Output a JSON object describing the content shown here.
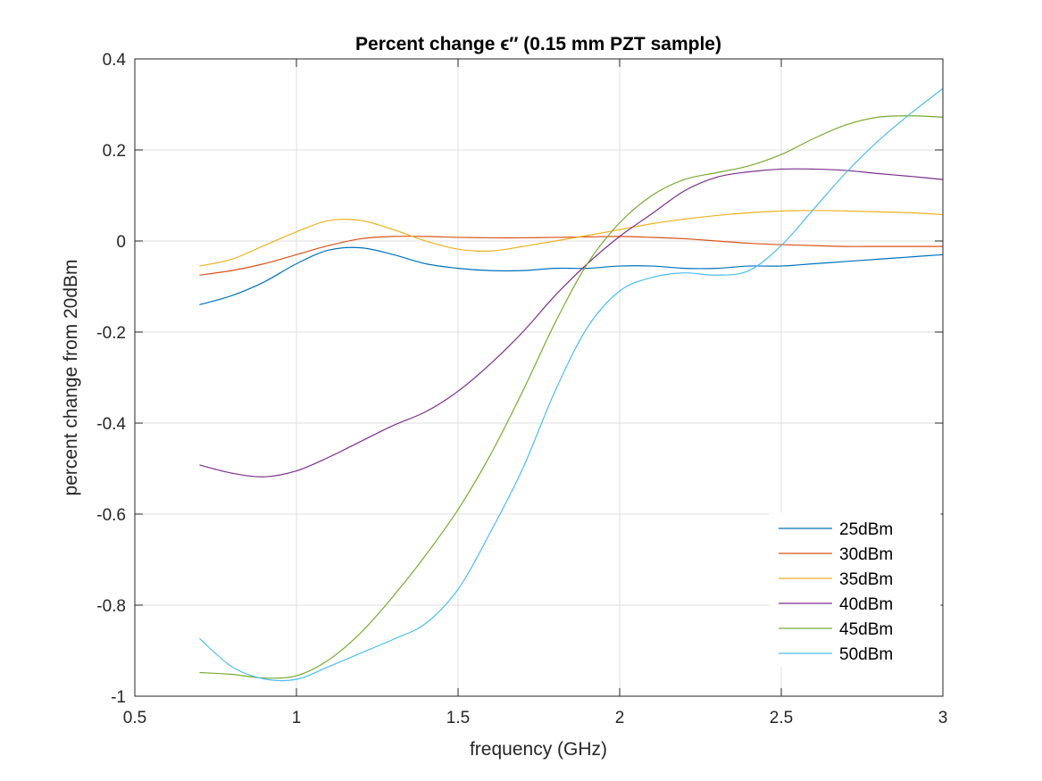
{
  "chart_data": {
    "type": "line",
    "title": "Percent change ϵ′′ (0.15 mm PZT sample)",
    "xlabel": "frequency (GHz)",
    "ylabel": "percent change from 20dBm",
    "xlim": [
      0.5,
      3
    ],
    "ylim": [
      -1,
      0.4
    ],
    "xticks": [
      0.5,
      1,
      1.5,
      2,
      2.5,
      3
    ],
    "xtick_labels": [
      "0.5",
      "1",
      "1.5",
      "2",
      "2.5",
      "3"
    ],
    "yticks": [
      -1,
      -0.8,
      -0.6,
      -0.4,
      -0.2,
      0,
      0.2,
      0.4
    ],
    "ytick_labels": [
      "-1",
      "-0.8",
      "-0.6",
      "-0.4",
      "-0.2",
      "0",
      "0.2",
      "0.4"
    ],
    "grid": true,
    "legend_position": "bottom-right",
    "x": [
      0.7,
      0.8,
      0.9,
      1.0,
      1.1,
      1.2,
      1.3,
      1.4,
      1.5,
      1.6,
      1.7,
      1.8,
      1.9,
      2.0,
      2.1,
      2.2,
      2.3,
      2.4,
      2.5,
      2.6,
      2.7,
      2.8,
      2.9,
      3.0
    ],
    "series": [
      {
        "name": "25dBm",
        "color": "#0072BD",
        "values": [
          -0.14,
          -0.12,
          -0.09,
          -0.05,
          -0.02,
          -0.015,
          -0.03,
          -0.05,
          -0.06,
          -0.065,
          -0.065,
          -0.06,
          -0.06,
          -0.055,
          -0.055,
          -0.06,
          -0.06,
          -0.055,
          -0.055,
          -0.05,
          -0.045,
          -0.04,
          -0.035,
          -0.03
        ]
      },
      {
        "name": "30dBm",
        "color": "#D95319",
        "values": [
          -0.075,
          -0.065,
          -0.05,
          -0.03,
          -0.01,
          0.005,
          0.01,
          0.01,
          0.008,
          0.007,
          0.007,
          0.008,
          0.009,
          0.01,
          0.008,
          0.005,
          0.0,
          -0.005,
          -0.008,
          -0.01,
          -0.012,
          -0.012,
          -0.012,
          -0.012
        ]
      },
      {
        "name": "35dBm",
        "color": "#EDB120",
        "values": [
          -0.055,
          -0.04,
          -0.01,
          0.02,
          0.045,
          0.045,
          0.025,
          0.0,
          -0.018,
          -0.022,
          -0.012,
          0.0,
          0.012,
          0.025,
          0.038,
          0.048,
          0.056,
          0.062,
          0.066,
          0.067,
          0.066,
          0.064,
          0.062,
          0.058
        ]
      },
      {
        "name": "40dBm",
        "color": "#7E2F8E",
        "values": [
          -0.492,
          -0.51,
          -0.518,
          -0.505,
          -0.475,
          -0.44,
          -0.405,
          -0.375,
          -0.33,
          -0.27,
          -0.2,
          -0.12,
          -0.05,
          0.01,
          0.06,
          0.11,
          0.14,
          0.152,
          0.158,
          0.158,
          0.155,
          0.148,
          0.142,
          0.135
        ]
      },
      {
        "name": "45dBm",
        "color": "#77AC30",
        "values": [
          -0.948,
          -0.952,
          -0.96,
          -0.955,
          -0.92,
          -0.86,
          -0.78,
          -0.69,
          -0.59,
          -0.47,
          -0.33,
          -0.18,
          -0.05,
          0.04,
          0.1,
          0.135,
          0.15,
          0.165,
          0.19,
          0.225,
          0.255,
          0.272,
          0.275,
          0.272
        ]
      },
      {
        "name": "50dBm",
        "color": "#4DBEEE",
        "values": [
          -0.873,
          -0.935,
          -0.962,
          -0.963,
          -0.935,
          -0.905,
          -0.875,
          -0.84,
          -0.765,
          -0.64,
          -0.5,
          -0.33,
          -0.19,
          -0.11,
          -0.08,
          -0.07,
          -0.075,
          -0.065,
          -0.01,
          0.07,
          0.15,
          0.22,
          0.28,
          0.335
        ]
      }
    ]
  }
}
